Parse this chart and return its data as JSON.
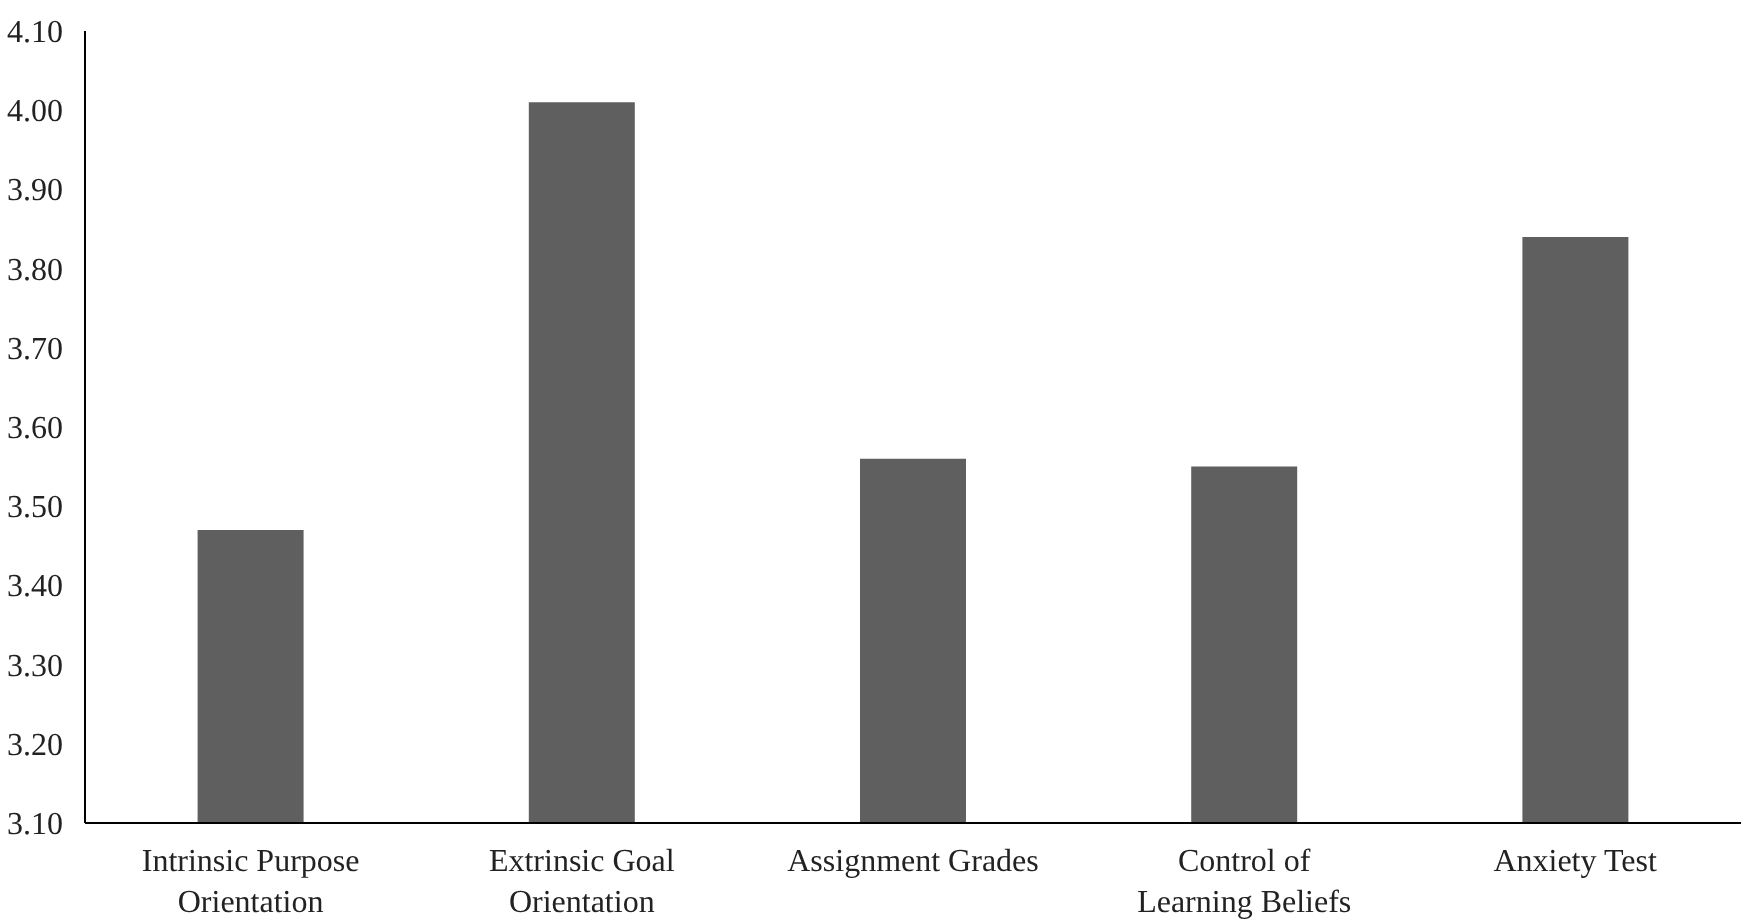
{
  "chart_data": {
    "type": "bar",
    "categories": [
      "Intrinsic Purpose Orientation",
      "Extrinsic Goal Orientation",
      "Assignment Grades",
      "Control of Learning Beliefs",
      "Anxiety Test"
    ],
    "values": [
      3.47,
      4.01,
      3.56,
      3.55,
      3.84
    ],
    "color": "#5f5f5f",
    "ylim": [
      3.1,
      4.1
    ],
    "yticks": [
      {
        "value": 3.1,
        "label": "3.10"
      },
      {
        "value": 3.2,
        "label": "3.20"
      },
      {
        "value": 3.3,
        "label": "3.30"
      },
      {
        "value": 3.4,
        "label": "3.40"
      },
      {
        "value": 3.5,
        "label": "3.50"
      },
      {
        "value": 3.6,
        "label": "3.60"
      },
      {
        "value": 3.7,
        "label": "3.70"
      },
      {
        "value": 3.8,
        "label": "3.80"
      },
      {
        "value": 3.9,
        "label": "3.90"
      },
      {
        "value": 4.0,
        "label": "4.00"
      },
      {
        "value": 4.1,
        "label": "4.10"
      }
    ],
    "grid": false
  }
}
